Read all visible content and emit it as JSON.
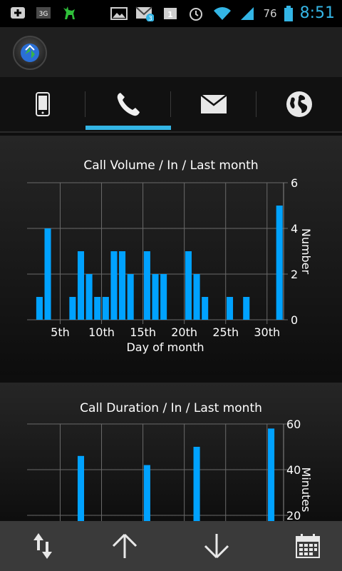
{
  "status_bar": {
    "network_label": "3G",
    "notification_count": "3",
    "calendar_day": "1",
    "battery_percent": "76",
    "time": "8:51"
  },
  "tabs": [
    {
      "icon": "phone-device-icon",
      "active": false
    },
    {
      "icon": "call-icon",
      "active": true
    },
    {
      "icon": "mail-icon",
      "active": false
    },
    {
      "icon": "globe-icon",
      "active": false
    }
  ],
  "charts": {
    "volume": {
      "title": "Call Volume / In / Last month"
    },
    "duration": {
      "title": "Call Duration / In / Last month"
    }
  },
  "chart_data": [
    {
      "type": "bar",
      "title": "Call Volume / In / Last month",
      "xlabel": "Day of month",
      "ylabel": "Number",
      "xlim": [
        1,
        31
      ],
      "ylim": [
        0,
        6
      ],
      "x_ticks": [
        5,
        10,
        15,
        20,
        25,
        30
      ],
      "x_tick_labels": [
        "5th",
        "10th",
        "15th",
        "20th",
        "25th",
        "30th"
      ],
      "y_ticks": [
        0,
        2,
        4,
        6
      ],
      "grid": true,
      "color": "#00a2ff",
      "x": [
        2,
        3,
        4,
        5,
        6,
        7,
        8,
        9,
        10,
        11,
        12,
        13,
        14,
        15,
        16,
        17,
        18,
        19,
        20,
        21,
        22,
        23,
        24,
        25,
        26,
        27,
        28,
        29,
        30,
        31
      ],
      "values": [
        1,
        4,
        0,
        0,
        1,
        3,
        2,
        1,
        1,
        3,
        3,
        2,
        0,
        3,
        2,
        2,
        0,
        0,
        3,
        2,
        1,
        0,
        0,
        1,
        0,
        1,
        0,
        0,
        0,
        5
      ]
    },
    {
      "type": "bar",
      "title": "Call Duration / In / Last month",
      "ylabel": "Minutes",
      "ylim_visible": [
        20,
        60
      ],
      "y_ticks": [
        20,
        40,
        60
      ],
      "grid": true,
      "color": "#00a2ff",
      "x": [
        7,
        15,
        21,
        30
      ],
      "values": [
        46,
        42,
        50,
        58
      ]
    }
  ],
  "bottom_bar": [
    {
      "icon": "sort-icon"
    },
    {
      "icon": "arrow-up-icon"
    },
    {
      "icon": "arrow-down-icon"
    },
    {
      "icon": "calendar-icon"
    }
  ]
}
